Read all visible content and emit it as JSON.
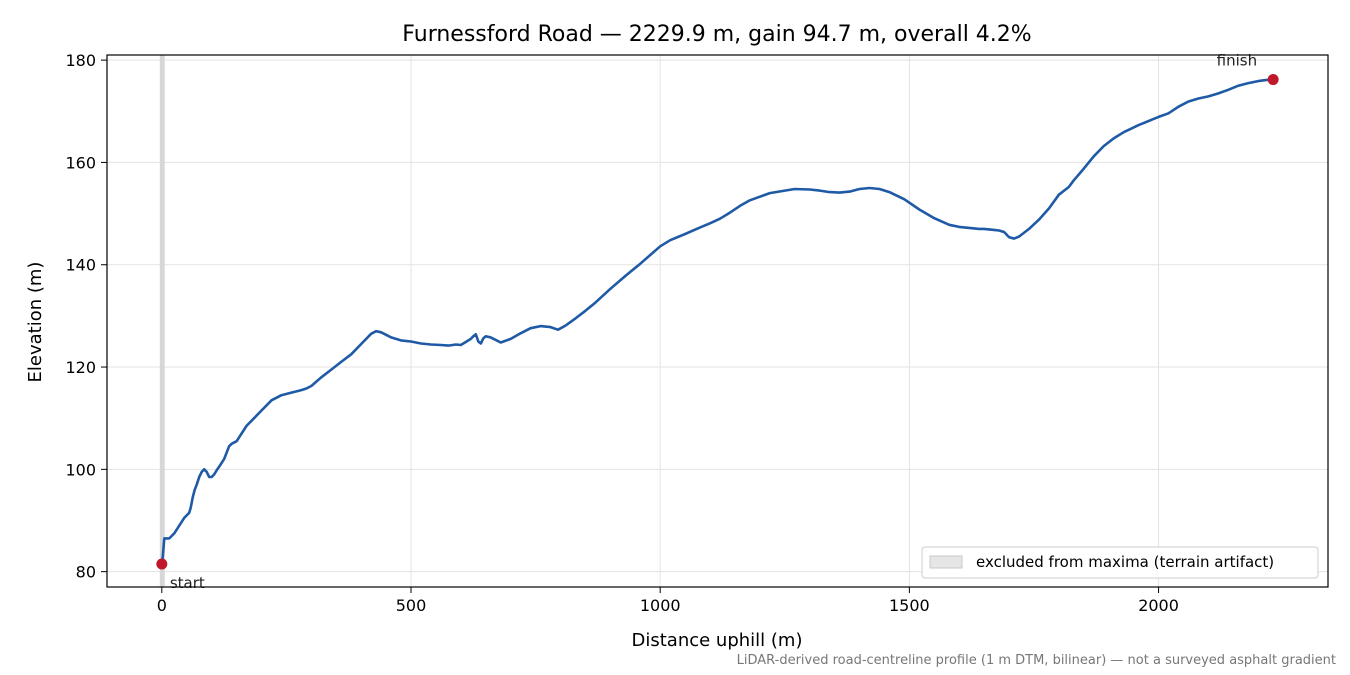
{
  "chart_data": {
    "type": "line",
    "title": "Furnessford Road — 2229.9 m, gain 94.7 m, overall 4.2%",
    "xlabel": "Distance uphill (m)",
    "ylabel": "Elevation (m)",
    "xlim": [
      -110,
      2340
    ],
    "ylim": [
      77,
      181
    ],
    "xticks": [
      0,
      500,
      1000,
      1500,
      2000
    ],
    "yticks": [
      80,
      100,
      120,
      140,
      160,
      180
    ],
    "grid": true,
    "line_color": "#1f5aa6",
    "marker_color": "#c0182a",
    "excluded_band": {
      "x": [
        0,
        8
      ],
      "color": "#d4d4d4"
    },
    "legend": {
      "label": "excluded from maxima (terrain artifact)",
      "position": "lower-right"
    },
    "annotations": [
      {
        "text": "start",
        "x": 0,
        "y": 81.5
      },
      {
        "text": "finish",
        "x": 2229.9,
        "y": 176.2
      }
    ],
    "footnote": "LiDAR-derived road-centreline profile (1 m DTM, bilinear) — not a surveyed asphalt gradient",
    "series": [
      {
        "x": [
          0,
          2,
          5,
          8,
          15,
          25,
          35,
          45,
          55,
          58,
          62,
          66,
          70,
          75,
          80,
          85,
          90,
          95,
          100,
          105,
          110,
          115,
          125,
          135,
          140,
          150,
          160,
          170,
          180,
          200,
          220,
          240,
          260,
          280,
          290,
          300,
          320,
          340,
          360,
          380,
          400,
          420,
          430,
          440,
          450,
          460,
          480,
          500,
          520,
          540,
          560,
          575,
          590,
          600,
          610,
          620,
          625,
          630,
          635,
          640,
          645,
          650,
          660,
          670,
          680,
          700,
          720,
          740,
          760,
          780,
          795,
          810,
          830,
          850,
          870,
          900,
          930,
          960,
          1000,
          1020,
          1050,
          1080,
          1100,
          1120,
          1140,
          1160,
          1180,
          1200,
          1220,
          1250,
          1270,
          1300,
          1320,
          1340,
          1360,
          1380,
          1400,
          1420,
          1440,
          1460,
          1490,
          1520,
          1550,
          1580,
          1600,
          1620,
          1640,
          1650,
          1670,
          1680,
          1690,
          1700,
          1710,
          1720,
          1740,
          1760,
          1780,
          1800,
          1820,
          1830,
          1850,
          1870,
          1890,
          1910,
          1930,
          1960,
          1990,
          2000,
          2020,
          2040,
          2060,
          2080,
          2100,
          2120,
          2140,
          2160,
          2180,
          2200,
          2215,
          2229.9
        ],
        "y": [
          81.5,
          83,
          86.5,
          86.5,
          86.5,
          87.5,
          89,
          90.5,
          91.5,
          92.5,
          94.5,
          96,
          97,
          98.5,
          99.5,
          100,
          99.5,
          98.5,
          98.5,
          99,
          99.8,
          100.5,
          102,
          104.5,
          105,
          105.5,
          107,
          108.5,
          109.5,
          111.5,
          113.5,
          114.5,
          115,
          115.5,
          115.8,
          116.3,
          118,
          119.5,
          121,
          122.5,
          124.5,
          126.5,
          127,
          126.8,
          126.3,
          125.8,
          125.2,
          125,
          124.6,
          124.4,
          124.3,
          124.2,
          124.4,
          124.3,
          124.9,
          125.5,
          126,
          126.4,
          125,
          124.6,
          125.6,
          126,
          125.8,
          125.3,
          124.8,
          125.5,
          126.6,
          127.6,
          128,
          127.8,
          127.3,
          128.1,
          129.5,
          131,
          132.6,
          135.3,
          137.8,
          140.2,
          143.6,
          144.8,
          146,
          147.3,
          148.1,
          149,
          150.2,
          151.5,
          152.6,
          153.3,
          154,
          154.5,
          154.8,
          154.7,
          154.5,
          154.2,
          154.1,
          154.3,
          154.8,
          155,
          154.8,
          154.2,
          152.8,
          150.8,
          149.1,
          147.8,
          147.4,
          147.2,
          147,
          147,
          146.8,
          146.7,
          146.4,
          145.4,
          145.1,
          145.5,
          147,
          148.8,
          151,
          153.7,
          155.2,
          156.5,
          158.8,
          161.2,
          163.2,
          164.7,
          165.9,
          167.3,
          168.5,
          168.9,
          169.6,
          170.9,
          171.9,
          172.5,
          172.9,
          173.5,
          174.2,
          175,
          175.5,
          175.9,
          176.1,
          176.2
        ]
      }
    ]
  }
}
